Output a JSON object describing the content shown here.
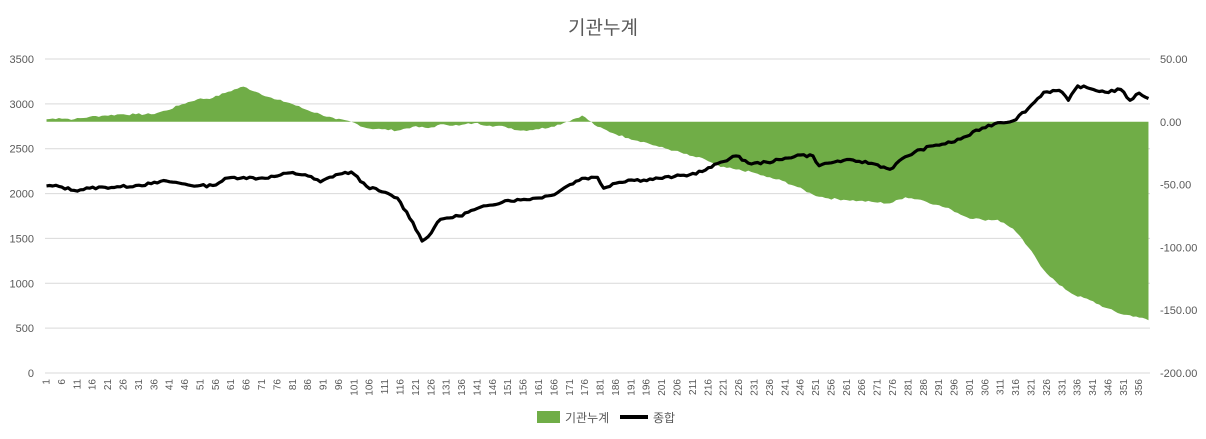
{
  "chart_data": {
    "type": "area+line",
    "title": "기관누계",
    "x_start": 1,
    "x_end": 359,
    "x_tick_step": 5,
    "left_axis": {
      "ylim": [
        0,
        3500
      ],
      "ticks": [
        0,
        500,
        1000,
        1500,
        2000,
        2500,
        3000,
        3500
      ]
    },
    "right_axis": {
      "ylim": [
        -200,
        50
      ],
      "ticks": [
        "50.00",
        "0.00",
        "-50.00",
        "-100.00",
        "-150.00",
        "-200.00"
      ]
    },
    "grid": true,
    "legend_position": "bottom",
    "series": [
      {
        "name": "기관누계",
        "kind": "area",
        "axis": "right",
        "color": "#70ad47",
        "points": [
          [
            1,
            2
          ],
          [
            5,
            3
          ],
          [
            10,
            2
          ],
          [
            15,
            4
          ],
          [
            20,
            5
          ],
          [
            25,
            6
          ],
          [
            30,
            6
          ],
          [
            35,
            6
          ],
          [
            40,
            9
          ],
          [
            45,
            14
          ],
          [
            50,
            18
          ],
          [
            55,
            19
          ],
          [
            60,
            24
          ],
          [
            65,
            28
          ],
          [
            70,
            23
          ],
          [
            75,
            18
          ],
          [
            80,
            15
          ],
          [
            85,
            10
          ],
          [
            90,
            6
          ],
          [
            95,
            2
          ],
          [
            100,
            0
          ],
          [
            105,
            -5
          ],
          [
            110,
            -6
          ],
          [
            115,
            -7
          ],
          [
            120,
            -4
          ],
          [
            125,
            -5
          ],
          [
            130,
            -2
          ],
          [
            135,
            -3
          ],
          [
            140,
            -1
          ],
          [
            145,
            -3
          ],
          [
            150,
            -4
          ],
          [
            155,
            -7
          ],
          [
            160,
            -6
          ],
          [
            165,
            -4
          ],
          [
            170,
            0
          ],
          [
            175,
            5
          ],
          [
            180,
            -4
          ],
          [
            185,
            -9
          ],
          [
            190,
            -13
          ],
          [
            195,
            -16
          ],
          [
            200,
            -20
          ],
          [
            205,
            -23
          ],
          [
            210,
            -27
          ],
          [
            215,
            -30
          ],
          [
            220,
            -36
          ],
          [
            225,
            -38
          ],
          [
            230,
            -40
          ],
          [
            235,
            -44
          ],
          [
            240,
            -47
          ],
          [
            245,
            -52
          ],
          [
            250,
            -58
          ],
          [
            255,
            -61
          ],
          [
            260,
            -62
          ],
          [
            265,
            -63
          ],
          [
            270,
            -64
          ],
          [
            275,
            -65
          ],
          [
            280,
            -60
          ],
          [
            285,
            -62
          ],
          [
            290,
            -66
          ],
          [
            295,
            -70
          ],
          [
            300,
            -76
          ],
          [
            305,
            -78
          ],
          [
            310,
            -78
          ],
          [
            315,
            -85
          ],
          [
            320,
            -100
          ],
          [
            325,
            -118
          ],
          [
            330,
            -130
          ],
          [
            335,
            -138
          ],
          [
            340,
            -142
          ],
          [
            345,
            -148
          ],
          [
            350,
            -153
          ],
          [
            355,
            -155
          ],
          [
            359,
            -158
          ]
        ]
      },
      {
        "name": "종합",
        "kind": "line",
        "axis": "left",
        "color": "#000000",
        "points": [
          [
            1,
            2085
          ],
          [
            5,
            2080
          ],
          [
            10,
            2035
          ],
          [
            15,
            2060
          ],
          [
            20,
            2070
          ],
          [
            25,
            2075
          ],
          [
            30,
            2090
          ],
          [
            35,
            2110
          ],
          [
            40,
            2140
          ],
          [
            45,
            2110
          ],
          [
            50,
            2085
          ],
          [
            55,
            2090
          ],
          [
            60,
            2175
          ],
          [
            65,
            2180
          ],
          [
            70,
            2170
          ],
          [
            75,
            2190
          ],
          [
            80,
            2230
          ],
          [
            85,
            2210
          ],
          [
            90,
            2130
          ],
          [
            95,
            2210
          ],
          [
            100,
            2240
          ],
          [
            105,
            2080
          ],
          [
            110,
            2020
          ],
          [
            115,
            1950
          ],
          [
            120,
            1680
          ],
          [
            123,
            1470
          ],
          [
            125,
            1520
          ],
          [
            128,
            1680
          ],
          [
            130,
            1720
          ],
          [
            135,
            1750
          ],
          [
            140,
            1820
          ],
          [
            145,
            1870
          ],
          [
            150,
            1920
          ],
          [
            155,
            1930
          ],
          [
            160,
            1950
          ],
          [
            165,
            1980
          ],
          [
            170,
            2080
          ],
          [
            175,
            2170
          ],
          [
            180,
            2180
          ],
          [
            182,
            2060
          ],
          [
            185,
            2110
          ],
          [
            190,
            2150
          ],
          [
            195,
            2150
          ],
          [
            200,
            2170
          ],
          [
            205,
            2190
          ],
          [
            210,
            2210
          ],
          [
            215,
            2260
          ],
          [
            220,
            2350
          ],
          [
            225,
            2420
          ],
          [
            230,
            2330
          ],
          [
            235,
            2350
          ],
          [
            240,
            2380
          ],
          [
            245,
            2430
          ],
          [
            250,
            2420
          ],
          [
            252,
            2310
          ],
          [
            255,
            2340
          ],
          [
            260,
            2370
          ],
          [
            265,
            2360
          ],
          [
            270,
            2330
          ],
          [
            275,
            2270
          ],
          [
            280,
            2410
          ],
          [
            285,
            2490
          ],
          [
            290,
            2540
          ],
          [
            295,
            2570
          ],
          [
            300,
            2640
          ],
          [
            305,
            2730
          ],
          [
            310,
            2790
          ],
          [
            315,
            2810
          ],
          [
            320,
            2950
          ],
          [
            325,
            3130
          ],
          [
            330,
            3150
          ],
          [
            333,
            3040
          ],
          [
            336,
            3200
          ],
          [
            340,
            3170
          ],
          [
            345,
            3130
          ],
          [
            350,
            3160
          ],
          [
            353,
            3040
          ],
          [
            356,
            3120
          ],
          [
            359,
            3060
          ]
        ]
      }
    ]
  }
}
